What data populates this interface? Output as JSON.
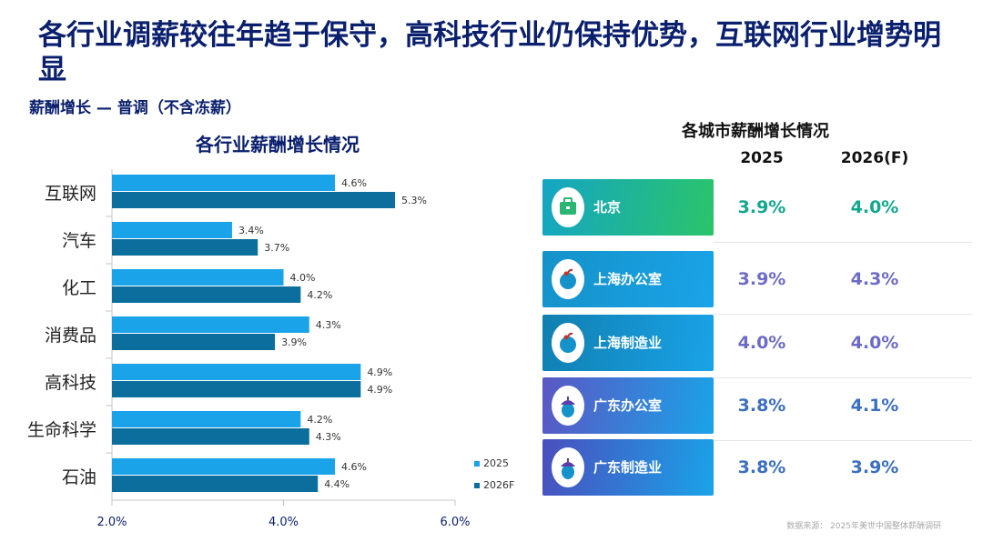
{
  "title": "各行业调薪较往年趋于保守，高科技行业仍保持优势，互联网行业增势明显",
  "subtitle": "薪酬增长 — 普调（不含冻薪）",
  "chart_data": [
    {
      "type": "bar",
      "orientation": "horizontal",
      "title": "各行业薪酬增长情况",
      "categories": [
        "互联网",
        "汽车",
        "化工",
        "消费品",
        "高科技",
        "生命科学",
        "石油"
      ],
      "series": [
        {
          "name": "2025",
          "values": [
            4.6,
            3.4,
            4.0,
            4.3,
            4.9,
            4.2,
            4.6
          ],
          "color": "#1aa3e8"
        },
        {
          "name": "2026F",
          "values": [
            5.3,
            3.7,
            4.2,
            3.9,
            4.9,
            4.3,
            4.4
          ],
          "color": "#0b6e9c"
        }
      ],
      "value_labels": {
        "2025": [
          "4.6%",
          "3.4%",
          "4.0%",
          "4.3%",
          "4.9%",
          "4.2%",
          "4.6%"
        ],
        "2026F": [
          "5.3%",
          "3.7%",
          "4.2%",
          "3.9%",
          "4.9%",
          "4.3%",
          "4.4%"
        ]
      },
      "xlim": [
        2.0,
        6.0
      ],
      "xticks": [
        "2.0%",
        "4.0%",
        "6.0%"
      ],
      "legend": "bottom-right",
      "grid": false
    },
    {
      "type": "table",
      "title": "各城市薪酬增长情况",
      "columns": [
        "2025",
        "2026(F)"
      ],
      "rows": [
        {
          "city": "北京",
          "v2025": "3.9%",
          "v2026": "4.0%",
          "box_color": "#2bb673",
          "value_color": "#11a88e",
          "icon": "briefcase-icon"
        },
        {
          "city": "上海办公室",
          "v2025": "3.9%",
          "v2026": "4.3%",
          "box_color": "#1592c9",
          "value_color": "#6d6bc8",
          "icon": "apple-icon"
        },
        {
          "city": "上海制造业",
          "v2025": "4.0%",
          "v2026": "4.0%",
          "box_color": "#107fb0",
          "value_color": "#6d6bc8",
          "icon": "apple-icon"
        },
        {
          "city": "广东办公室",
          "v2025": "3.8%",
          "v2026": "4.1%",
          "box_color": "#5b57c4",
          "value_color": "#3a6fc1",
          "icon": "acorn-icon"
        },
        {
          "city": "广东制造业",
          "v2025": "3.8%",
          "v2026": "3.9%",
          "box_color": "#4a4fbe",
          "value_color": "#3a6fc1",
          "icon": "acorn-icon"
        }
      ]
    }
  ],
  "source": "数据来源：  2025年美世中国整体薪酬调研"
}
